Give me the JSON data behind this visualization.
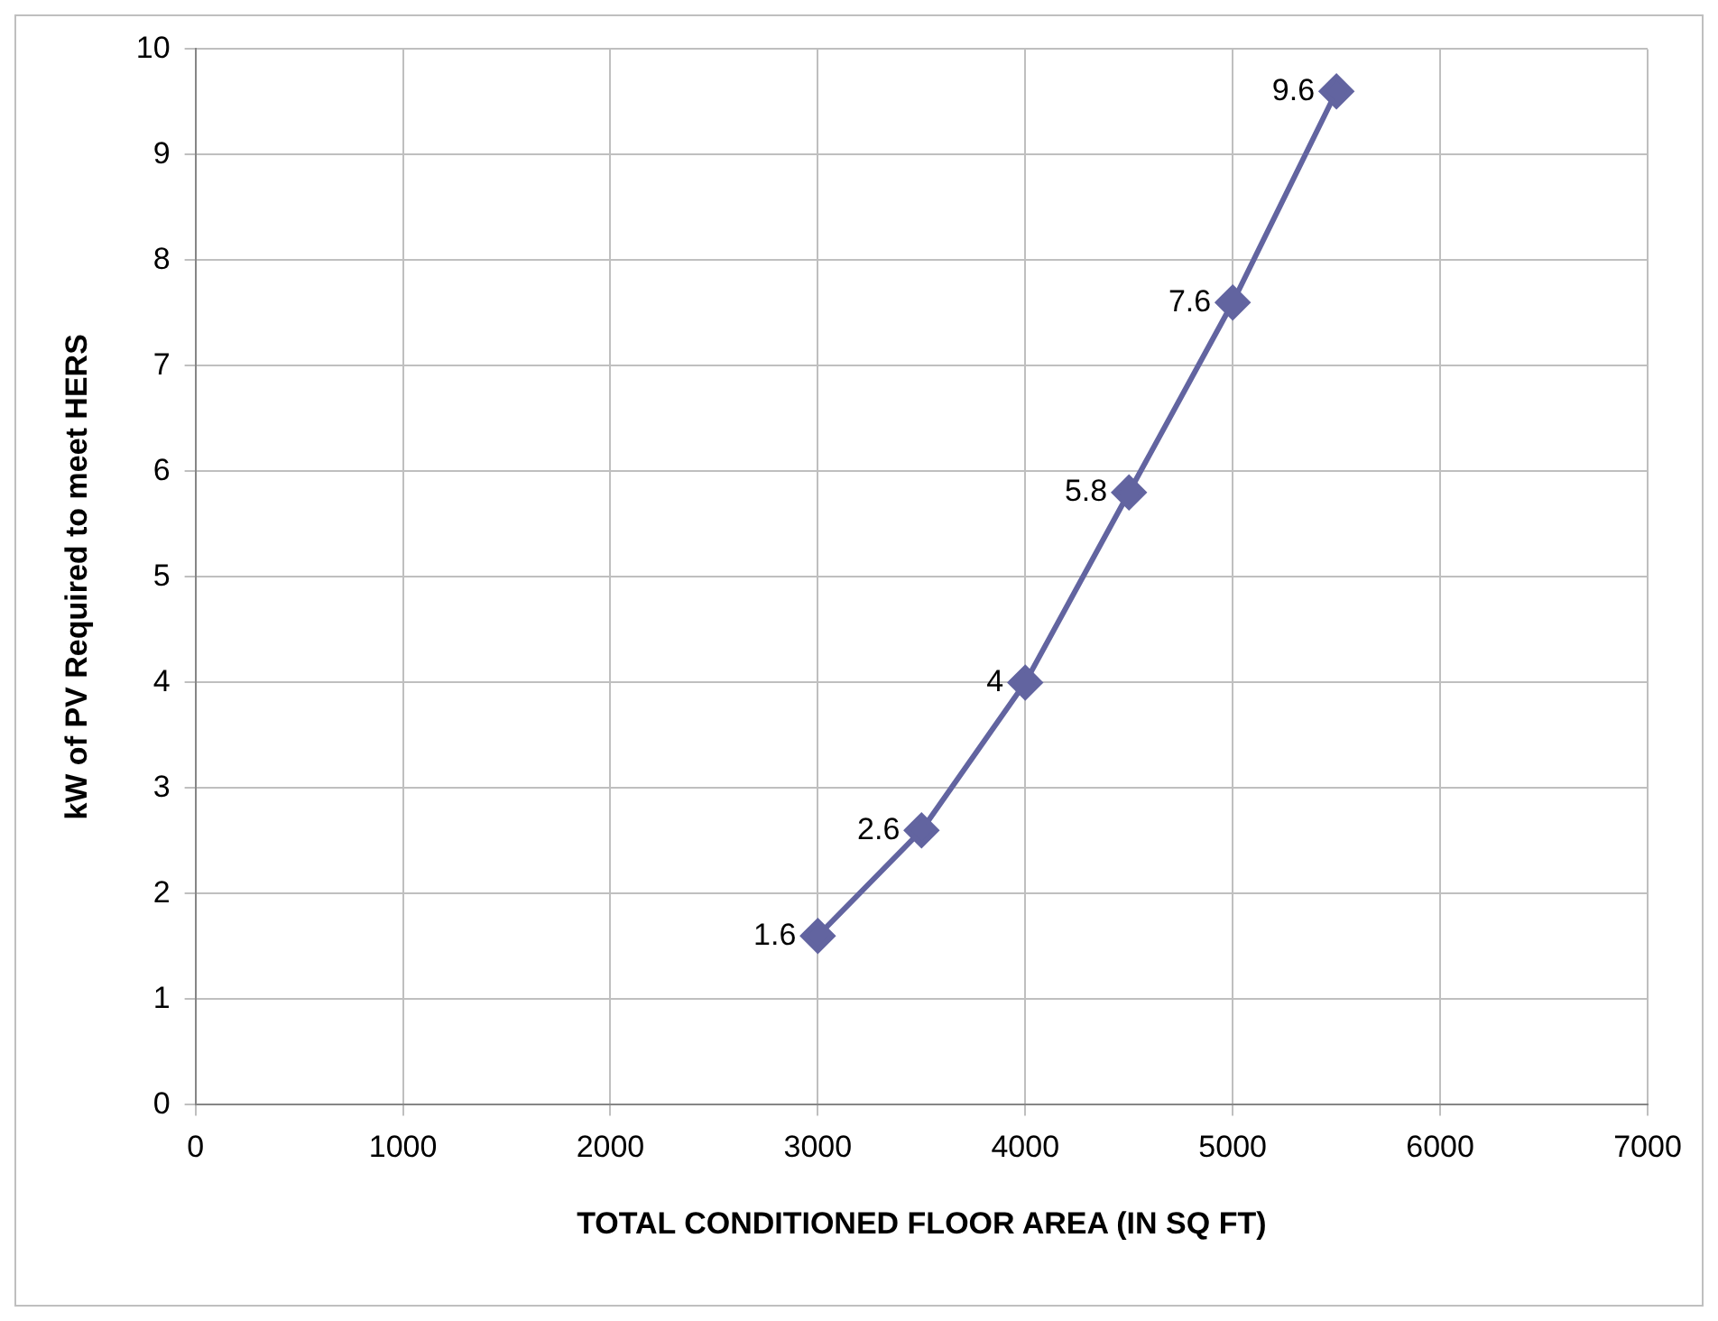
{
  "chart_data": {
    "type": "line",
    "xlabel": "TOTAL CONDITIONED FLOOR AREA (IN SQ FT)",
    "ylabel": "kW of PV Required to meet HERS",
    "x": [
      3000,
      3500,
      4000,
      4500,
      5000,
      5500
    ],
    "series": [
      {
        "color": "#6264a0",
        "values": [
          1.6,
          2.6,
          4,
          5.8,
          7.6,
          9.6
        ]
      }
    ],
    "xlim": [
      0,
      7000
    ],
    "xticks": [
      0,
      1000,
      2000,
      3000,
      4000,
      5000,
      6000,
      7000
    ],
    "ylim": [
      0,
      10
    ],
    "yticks": [
      0,
      1,
      2,
      3,
      4,
      5,
      6,
      7,
      8,
      9,
      10
    ],
    "grid": true,
    "legend": false,
    "marker": "diamond",
    "line_style": "solid",
    "data_labels": true
  }
}
